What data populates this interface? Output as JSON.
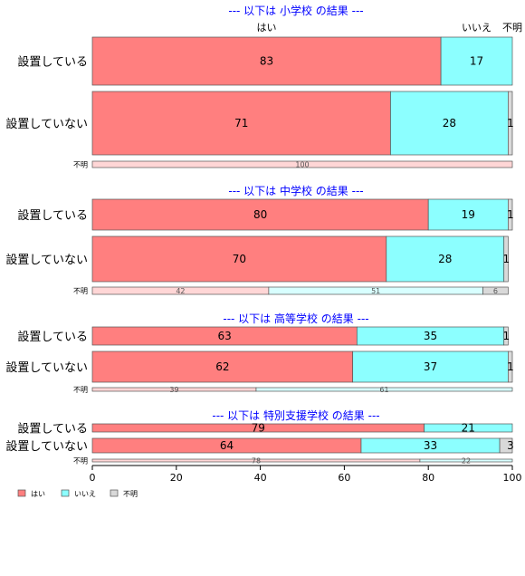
{
  "chart_data": {
    "type": "bar",
    "orientation": "horizontal",
    "stacked": true,
    "xlim": [
      0,
      100
    ],
    "x_ticks": [
      0,
      20,
      40,
      60,
      80,
      100
    ],
    "colors": {
      "yes": "#ff7f7f",
      "no": "#8cffff",
      "unknown": "#d9d9d9"
    },
    "top_labels": {
      "yes": "はい",
      "no": "いいえ",
      "unknown": "不明"
    },
    "legend": {
      "position": "bottom-left",
      "items": [
        {
          "key": "yes",
          "label": "はい"
        },
        {
          "key": "no",
          "label": "いいえ"
        },
        {
          "key": "unknown",
          "label": "不明"
        }
      ]
    },
    "panels": [
      {
        "title": "--- 以下は 小学校 の結果 ---",
        "rows": [
          {
            "label": "設置している",
            "values": [
              83,
              17,
              0
            ],
            "labels": [
              "83",
              "17",
              ""
            ],
            "small": false
          },
          {
            "label": "設置していない",
            "values": [
              71,
              28,
              1
            ],
            "labels": [
              "71",
              "28",
              "1"
            ],
            "small": false
          },
          {
            "label": "不明",
            "values": [
              100,
              0,
              0
            ],
            "labels": [
              "100",
              "",
              ""
            ],
            "small": true
          }
        ]
      },
      {
        "title": "--- 以下は 中学校 の結果 ---",
        "rows": [
          {
            "label": "設置している",
            "values": [
              80,
              19,
              1
            ],
            "labels": [
              "80",
              "19",
              "1"
            ],
            "small": false
          },
          {
            "label": "設置していない",
            "values": [
              70,
              28,
              1
            ],
            "labels": [
              "70",
              "28",
              "1"
            ],
            "small": false
          },
          {
            "label": "不明",
            "values": [
              42,
              51,
              6
            ],
            "labels": [
              "42",
              "51",
              "6"
            ],
            "small": true
          }
        ]
      },
      {
        "title": "--- 以下は 高等学校 の結果 ---",
        "rows": [
          {
            "label": "設置している",
            "values": [
              63,
              35,
              1
            ],
            "labels": [
              "63",
              "35",
              "1"
            ],
            "small": false
          },
          {
            "label": "設置していない",
            "values": [
              62,
              37,
              1
            ],
            "labels": [
              "62",
              "37",
              "1"
            ],
            "small": false
          },
          {
            "label": "不明",
            "values": [
              39,
              61,
              0
            ],
            "labels": [
              "39",
              "61",
              ""
            ],
            "small": true
          }
        ]
      },
      {
        "title": "--- 以下は 特別支援学校 の結果 ---",
        "rows": [
          {
            "label": "設置している",
            "values": [
              79,
              21,
              0
            ],
            "labels": [
              "79",
              "21",
              ""
            ],
            "small": false
          },
          {
            "label": "設置していない",
            "values": [
              64,
              33,
              3
            ],
            "labels": [
              "64",
              "33",
              "3"
            ],
            "small": false
          },
          {
            "label": "不明",
            "values": [
              78,
              22,
              0
            ],
            "labels": [
              "78",
              "22",
              ""
            ],
            "small": true
          }
        ]
      }
    ]
  }
}
